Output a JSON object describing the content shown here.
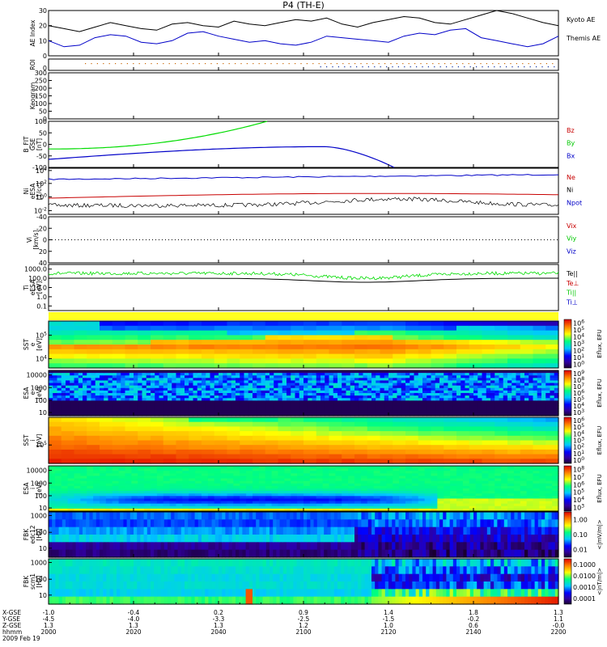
{
  "chart_data": {
    "type": "multi-panel",
    "title": "P4 (TH-E)",
    "date": "2009 Feb 19",
    "x": {
      "ticks": [
        "2000",
        "2020",
        "2040",
        "2100",
        "2120",
        "2140",
        "2200"
      ],
      "rows": [
        {
          "label": "X-GSE",
          "values": [
            "-1.0",
            "-0.4",
            "0.2",
            "0.9",
            "1.4",
            "1.8",
            "1.3"
          ]
        },
        {
          "label": "Y-GSE",
          "values": [
            "-4.5",
            "-4.0",
            "-3.3",
            "-2.5",
            "-1.5",
            "-0.2",
            "1.1"
          ]
        },
        {
          "label": "Z-GSE",
          "values": [
            "1.3",
            "1.3",
            "1.3",
            "1.2",
            "1.0",
            "0.6",
            "-0.0"
          ]
        },
        {
          "label": "hhmm",
          "values": [
            "2000",
            "2020",
            "2040",
            "2100",
            "2120",
            "2140",
            "2200"
          ]
        }
      ]
    },
    "panels": [
      {
        "id": "ae",
        "ylabel": "AE Index",
        "yticks": [
          "0",
          "10",
          "20",
          "30"
        ],
        "ylim": [
          0,
          30
        ],
        "series": [
          {
            "name": "Kyoto AE",
            "color": "#000000",
            "values": [
              20,
              18,
              16,
              19,
              22,
              20,
              18,
              17,
              21,
              22,
              20,
              19,
              23,
              21,
              20,
              22,
              24,
              23,
              25,
              21,
              19,
              22,
              24,
              26,
              25,
              22,
              21,
              24,
              27,
              30,
              28,
              25,
              22,
              20
            ]
          },
          {
            "name": "Themis AE",
            "color": "#0000c8",
            "values": [
              10,
              6,
              7,
              12,
              14,
              13,
              9,
              8,
              10,
              15,
              16,
              13,
              11,
              9,
              10,
              8,
              7,
              9,
              13,
              12,
              11,
              10,
              9,
              13,
              15,
              14,
              17,
              18,
              12,
              10,
              8,
              6,
              8,
              13
            ]
          }
        ]
      },
      {
        "id": "roi",
        "ylabel": "ROI",
        "yticks": [
          "0"
        ]
      },
      {
        "id": "keo",
        "ylabel": "Keogram",
        "yticks": [
          "300",
          "250",
          "200",
          "150",
          "100",
          "50",
          "0"
        ]
      },
      {
        "id": "bfit",
        "ylabel": [
          "B_FIT",
          "GSE",
          "[nT]"
        ],
        "yticks": [
          "-100",
          "-50",
          "0",
          "50",
          "100"
        ],
        "ylim": [
          -100,
          100
        ],
        "legend": [
          {
            "name": "Bz",
            "color": "#c80000"
          },
          {
            "name": "By",
            "color": "#00c800"
          },
          {
            "name": "Bx",
            "color": "#0000c8"
          }
        ]
      },
      {
        "id": "ni",
        "ylabel": [
          "Ni",
          "eESA",
          "[1/cc]"
        ],
        "yticks": [
          "10^-2",
          "10^0",
          "10^2",
          "10^4"
        ],
        "legend": [
          {
            "name": "Ne",
            "color": "#c80000"
          },
          {
            "name": "Ni",
            "color": "#000000"
          },
          {
            "name": "Npot",
            "color": "#0000c8"
          }
        ]
      },
      {
        "id": "vi",
        "ylabel": [
          "Vi",
          "[km/s]"
        ],
        "yticks": [
          "-40",
          "-20",
          "0",
          "20",
          "40"
        ],
        "legend": [
          {
            "name": "Vix",
            "color": "#c80000"
          },
          {
            "name": "Viy",
            "color": "#00c800"
          },
          {
            "name": "Viz",
            "color": "#0000c8"
          }
        ]
      },
      {
        "id": "ti",
        "ylabel": [
          "Ti",
          "eESA",
          "[eV]"
        ],
        "yticks": [
          "0.1",
          "1.0",
          "10.0",
          "100.0",
          "1000.0"
        ],
        "legend": [
          {
            "name": "Te||",
            "color": "#000000"
          },
          {
            "name": "Te⊥",
            "color": "#c80000"
          },
          {
            "name": "Ti||",
            "color": "#00c800"
          },
          {
            "name": "Ti⊥",
            "color": "#0000c8"
          }
        ]
      },
      {
        "id": "sst_e",
        "ylabel": [
          "SST",
          "e",
          "[eV]"
        ],
        "yticks": [
          "10^4",
          "10^5"
        ],
        "cb_label": "Eflux, EFU",
        "cb_ticks": [
          "10^0",
          "10^1",
          "10^2",
          "10^3",
          "10^4",
          "10^5",
          "10^6"
        ]
      },
      {
        "id": "esa_e",
        "ylabel": [
          "ESA",
          "e",
          "[eV]"
        ],
        "yticks": [
          "10",
          "100",
          "1000",
          "10000"
        ],
        "cb_label": "Eflux, EFU",
        "cb_ticks": [
          "10^3",
          "10^4",
          "10^5",
          "10^6",
          "10^7",
          "10^8",
          "10^9"
        ]
      },
      {
        "id": "sst_i",
        "ylabel": [
          "SST",
          "i",
          "[eV]"
        ],
        "yticks": [
          "10^5"
        ],
        "cb_label": "Eflux, EFU",
        "cb_ticks": [
          "10^0",
          "10^1",
          "10^2",
          "10^3",
          "10^4",
          "10^5",
          "10^6"
        ]
      },
      {
        "id": "esa_i",
        "ylabel": [
          "ESA",
          "i",
          "[eV]"
        ],
        "yticks": [
          "10",
          "100",
          "1000",
          "10000"
        ],
        "cb_label": "Eflux, EFU",
        "cb_ticks": [
          "10^3",
          "10^4",
          "10^5",
          "10^6",
          "10^7",
          "10^8"
        ]
      },
      {
        "id": "fbk_edc",
        "ylabel": [
          "FBK",
          "edc12",
          "[Hz]"
        ],
        "yticks": [
          "10",
          "100",
          "1000"
        ],
        "cb_label": "<|mV/m|>",
        "cb_ticks": [
          "0.01",
          "0.10",
          "1.00"
        ]
      },
      {
        "id": "fbk_scm",
        "ylabel": [
          "FBK",
          "scm1",
          "[Hz]"
        ],
        "yticks": [
          "10",
          "100",
          "1000"
        ],
        "cb_label": "<|nT/m|>",
        "cb_ticks": [
          "0.0001",
          "0.0010",
          "0.0100",
          "0.1000"
        ]
      }
    ]
  }
}
